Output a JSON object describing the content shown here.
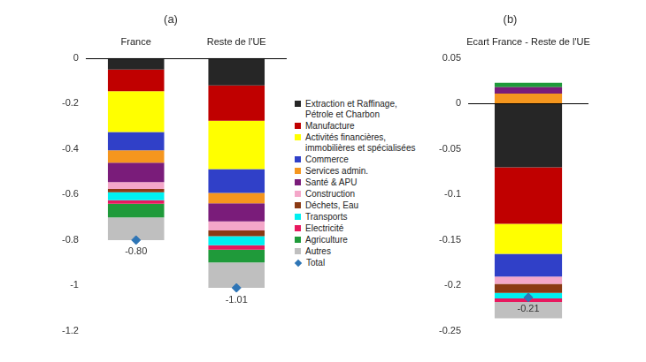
{
  "chart_data": [
    {
      "type": "bar",
      "title": "(a)",
      "stacked": true,
      "grid": false,
      "legend": "right",
      "categories": [
        "France",
        "Reste de l'UE"
      ],
      "ylim": [
        -1.2,
        0
      ],
      "yticks": [
        0,
        -0.2,
        -0.4,
        -0.6,
        -0.8,
        -1,
        -1.2
      ],
      "series": [
        {
          "name": "Extraction et Raffinage, Pétrole et Charbon",
          "color": "#262626",
          "values": [
            -0.05,
            -0.12
          ]
        },
        {
          "name": "Manufacture",
          "color": "#c00000",
          "values": [
            -0.095,
            -0.155
          ]
        },
        {
          "name": "Activités financières, immobilières et spécialisées",
          "color": "#ffff00",
          "values": [
            -0.18,
            -0.213
          ]
        },
        {
          "name": "Commerce",
          "color": "#3040c8",
          "values": [
            -0.08,
            -0.105
          ]
        },
        {
          "name": "Services admin.",
          "color": "#f5961e",
          "values": [
            -0.055,
            -0.045
          ]
        },
        {
          "name": "Santé & APU",
          "color": "#7a1c7a",
          "values": [
            -0.085,
            -0.08
          ]
        },
        {
          "name": "Construction",
          "color": "#f4a7c9",
          "values": [
            -0.03,
            -0.04
          ]
        },
        {
          "name": "Déchets, Eau",
          "color": "#8b3a14",
          "values": [
            -0.015,
            -0.025
          ]
        },
        {
          "name": "Transports",
          "color": "#00f0f0",
          "values": [
            -0.035,
            -0.04
          ]
        },
        {
          "name": "Electricité",
          "color": "#e8185e",
          "values": [
            -0.015,
            -0.019
          ]
        },
        {
          "name": "Agriculture",
          "color": "#1f9a3a",
          "values": [
            -0.06,
            -0.056
          ]
        },
        {
          "name": "Autres",
          "color": "#bfbfbf",
          "values": [
            -0.1,
            -0.112
          ]
        },
        {
          "name": "Total",
          "color": "#2e75b6",
          "type": "line",
          "marker": "diamond",
          "line_style": "none",
          "values": [
            -0.8,
            -1.01
          ],
          "value_labels": [
            "-0.80",
            "-1.01"
          ]
        }
      ]
    },
    {
      "type": "bar",
      "title": "(b)",
      "stacked": true,
      "grid": false,
      "categories": [
        "Ecart France - Reste de l'UE"
      ],
      "ylim": [
        -0.25,
        0.05
      ],
      "yticks": [
        0.05,
        0,
        -0.05,
        -0.1,
        -0.15,
        -0.2,
        -0.25
      ],
      "series": [
        {
          "name": "Extraction et Raffinage, Pétrole et Charbon",
          "color": "#262626",
          "values": [
            -0.07
          ]
        },
        {
          "name": "Manufacture",
          "color": "#c00000",
          "values": [
            -0.062
          ]
        },
        {
          "name": "Activités financières, immobilières et spécialisées",
          "color": "#ffff00",
          "values": [
            -0.033
          ]
        },
        {
          "name": "Commerce",
          "color": "#3040c8",
          "values": [
            -0.025
          ]
        },
        {
          "name": "Services admin.",
          "color": "#f5961e",
          "values": [
            0.011
          ]
        },
        {
          "name": "Santé & APU",
          "color": "#7a1c7a",
          "values": [
            0.007
          ]
        },
        {
          "name": "Construction",
          "color": "#f4a7c9",
          "values": [
            -0.008
          ]
        },
        {
          "name": "Déchets, Eau",
          "color": "#8b3a14",
          "values": [
            -0.01
          ]
        },
        {
          "name": "Transports",
          "color": "#00f0f0",
          "values": [
            -0.006
          ]
        },
        {
          "name": "Electricité",
          "color": "#e8185e",
          "values": [
            -0.004
          ]
        },
        {
          "name": "Agriculture",
          "color": "#1f9a3a",
          "values": [
            0.005
          ]
        },
        {
          "name": "Autres",
          "color": "#bfbfbf",
          "values": [
            -0.018
          ]
        },
        {
          "name": "Total",
          "color": "#2e75b6",
          "type": "line",
          "marker": "diamond",
          "line_style": "none",
          "values": [
            -0.213
          ],
          "value_labels": [
            "-0.21"
          ]
        }
      ]
    }
  ]
}
